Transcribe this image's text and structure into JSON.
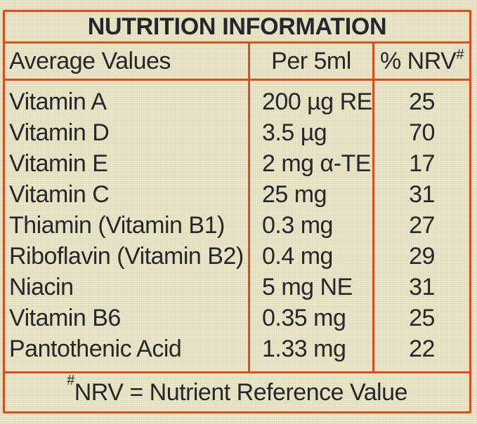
{
  "colors": {
    "background": "#eae7c9",
    "border": "#dc4c1d",
    "text": "#26262d"
  },
  "table": {
    "title": "NUTRITION INFORMATION",
    "headers": {
      "average_values": "Average Values",
      "per_5ml": "Per 5ml",
      "nrv": "% NRV",
      "nrv_superscript": "#"
    },
    "rows": [
      {
        "name": "Vitamin A",
        "per_5ml": "200 µg RE",
        "nrv": "25"
      },
      {
        "name": "Vitamin D",
        "per_5ml": "3.5 µg",
        "nrv": "70"
      },
      {
        "name": "Vitamin E",
        "per_5ml": "2 mg α-TE",
        "nrv": "17"
      },
      {
        "name": "Vitamin C",
        "per_5ml": "25 mg",
        "nrv": "31"
      },
      {
        "name": "Thiamin (Vitamin B1)",
        "per_5ml": "0.3 mg",
        "nrv": "27"
      },
      {
        "name": "Riboflavin (Vitamin B2)",
        "per_5ml": "0.4 mg",
        "nrv": "29"
      },
      {
        "name": "Niacin",
        "per_5ml": "5 mg NE",
        "nrv": "31"
      },
      {
        "name": "Vitamin B6",
        "per_5ml": "0.35 mg",
        "nrv": "25"
      },
      {
        "name": "Pantothenic Acid",
        "per_5ml": "1.33 mg",
        "nrv": "22"
      }
    ],
    "footnote": {
      "superscript": "#",
      "text": "NRV = Nutrient Reference Value"
    }
  }
}
